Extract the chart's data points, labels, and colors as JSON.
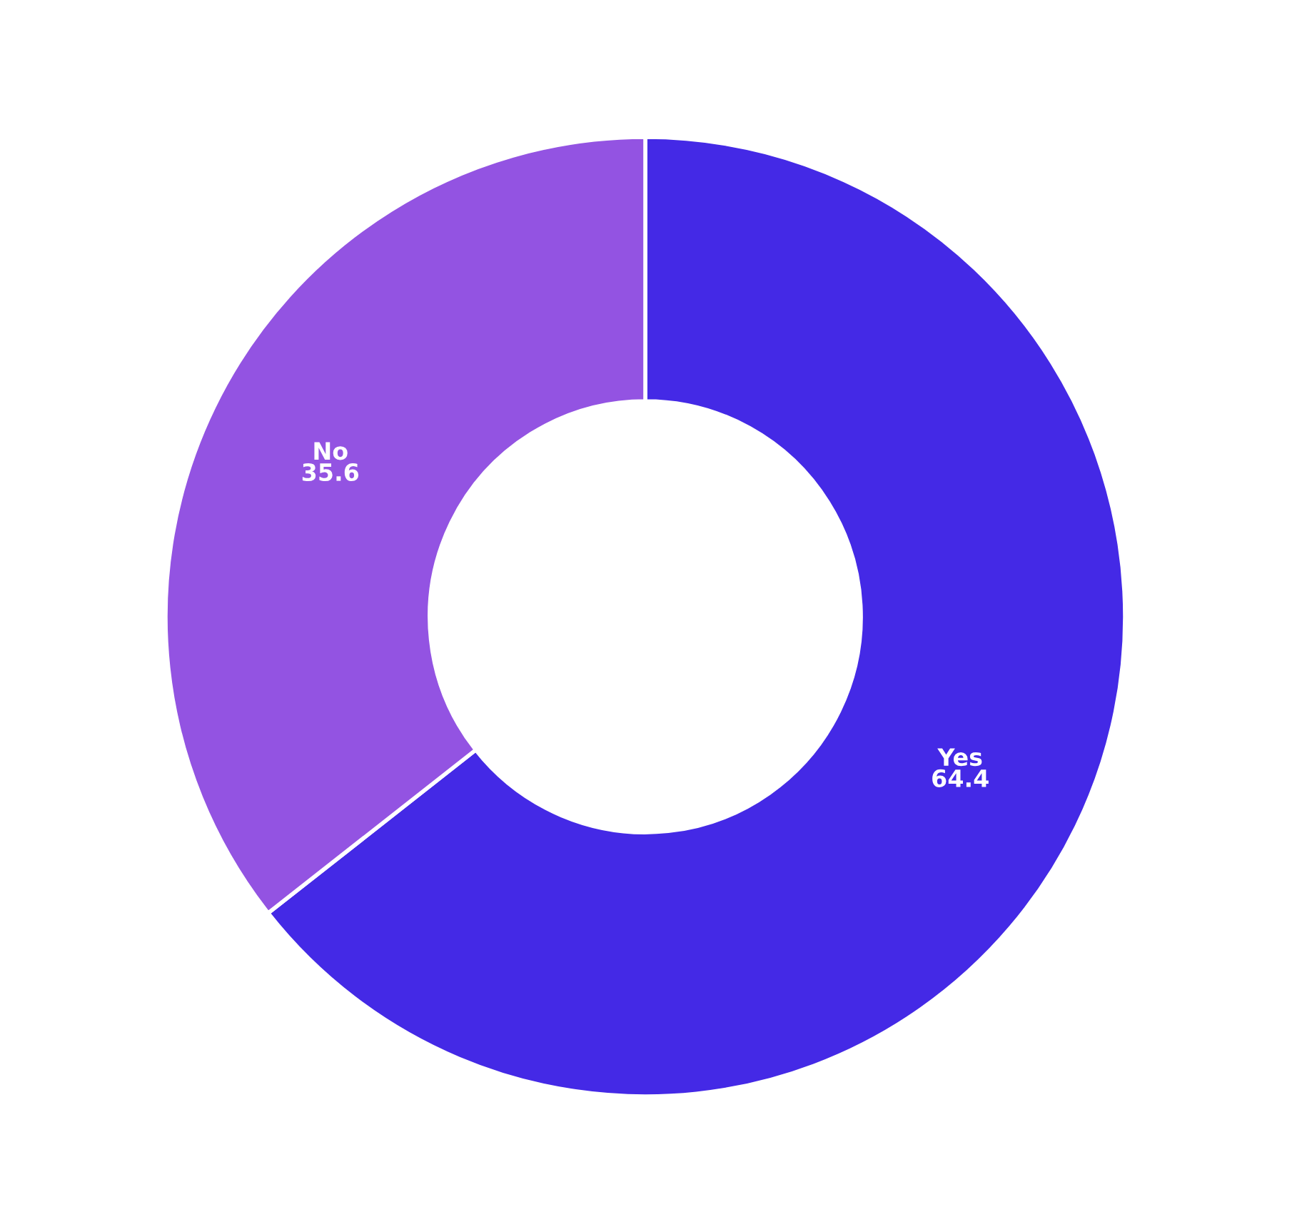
{
  "chart_data": {
    "type": "donut",
    "categories": [
      "Yes",
      "No"
    ],
    "values": [
      64.4,
      35.6
    ],
    "colors": [
      "#4429e6",
      "#9353e2"
    ],
    "data_labels": true
  }
}
